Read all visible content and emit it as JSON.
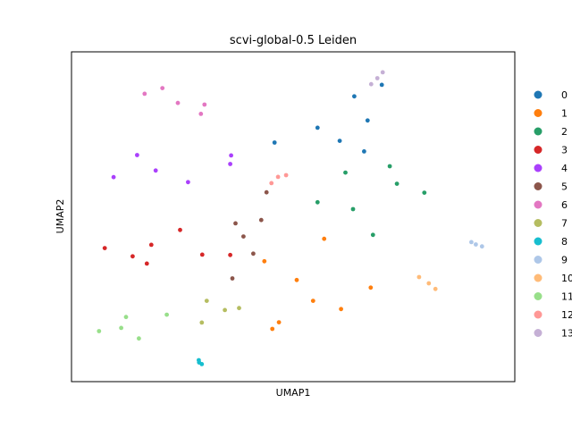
{
  "chart_data": {
    "type": "scatter",
    "title": "scvi-global-0.5 Leiden",
    "xlabel": "UMAP1",
    "ylabel": "UMAP2",
    "xticks": [],
    "yticks": [],
    "grid": false,
    "legend_position": "right",
    "xlim": [
      0,
      100
    ],
    "ylim": [
      0,
      100
    ],
    "series": [
      {
        "name": "0",
        "color": "#1f77b4",
        "points": [
          [
            55.5,
            77.0
          ],
          [
            66.8,
            79.2
          ],
          [
            70.0,
            90.0
          ],
          [
            63.8,
            86.5
          ],
          [
            45.8,
            72.5
          ],
          [
            66.0,
            69.8
          ],
          [
            60.5,
            73.0
          ]
        ]
      },
      {
        "name": "1",
        "color": "#ff7f0e",
        "points": [
          [
            54.5,
            24.5
          ],
          [
            43.5,
            36.5
          ],
          [
            67.5,
            28.5
          ],
          [
            57.0,
            43.3
          ],
          [
            50.8,
            30.8
          ],
          [
            60.8,
            22.0
          ],
          [
            45.3,
            16.0
          ],
          [
            46.8,
            18.0
          ]
        ]
      },
      {
        "name": "2",
        "color": "#279e68",
        "points": [
          [
            73.4,
            60.0
          ],
          [
            55.5,
            54.4
          ],
          [
            63.5,
            52.3
          ],
          [
            68.0,
            44.5
          ],
          [
            71.8,
            65.3
          ],
          [
            79.6,
            57.3
          ],
          [
            61.8,
            63.4
          ]
        ]
      },
      {
        "name": "3",
        "color": "#d62728",
        "points": [
          [
            18.0,
            41.5
          ],
          [
            13.8,
            38.0
          ],
          [
            24.5,
            46.0
          ],
          [
            29.5,
            38.5
          ],
          [
            7.5,
            40.5
          ],
          [
            17.0,
            35.8
          ],
          [
            35.8,
            38.4
          ]
        ]
      },
      {
        "name": "4",
        "color": "#aa40fc",
        "points": [
          [
            19.0,
            64.0
          ],
          [
            26.3,
            60.5
          ],
          [
            14.8,
            68.7
          ],
          [
            35.8,
            66.0
          ],
          [
            9.5,
            62.0
          ],
          [
            36.0,
            68.6
          ]
        ]
      },
      {
        "name": "5",
        "color": "#8c564b",
        "points": [
          [
            38.8,
            44.0
          ],
          [
            37.0,
            48.0
          ],
          [
            41.0,
            38.8
          ],
          [
            36.3,
            31.3
          ],
          [
            44.0,
            57.4
          ],
          [
            42.8,
            49.0
          ]
        ]
      },
      {
        "name": "6",
        "color": "#e377c2",
        "points": [
          [
            24.0,
            84.5
          ],
          [
            20.5,
            89.0
          ],
          [
            30.0,
            84.0
          ],
          [
            16.5,
            87.3
          ],
          [
            29.2,
            81.2
          ]
        ]
      },
      {
        "name": "7",
        "color": "#b5bd61",
        "points": [
          [
            34.6,
            21.7
          ],
          [
            30.5,
            24.5
          ],
          [
            37.8,
            22.3
          ],
          [
            29.4,
            17.9
          ]
        ]
      },
      {
        "name": "8",
        "color": "#17becf",
        "points": [
          [
            28.8,
            5.8
          ],
          [
            28.7,
            6.5
          ],
          [
            29.4,
            5.3
          ]
        ]
      },
      {
        "name": "9",
        "color": "#aec7e8",
        "points": [
          [
            91.2,
            41.6
          ],
          [
            90.2,
            42.3
          ],
          [
            92.6,
            41.0
          ]
        ]
      },
      {
        "name": "10",
        "color": "#ffbb78",
        "points": [
          [
            80.6,
            29.8
          ],
          [
            78.4,
            31.7
          ],
          [
            82.1,
            28.1
          ]
        ]
      },
      {
        "name": "11",
        "color": "#98df8a",
        "points": [
          [
            11.2,
            16.3
          ],
          [
            6.2,
            15.3
          ],
          [
            15.2,
            13.1
          ],
          [
            12.3,
            19.6
          ],
          [
            21.5,
            20.3
          ]
        ]
      },
      {
        "name": "12",
        "color": "#ff9896",
        "points": [
          [
            46.6,
            62.1
          ],
          [
            45.1,
            60.2
          ],
          [
            48.4,
            62.6
          ]
        ]
      },
      {
        "name": "13",
        "color": "#c5b0d5",
        "points": [
          [
            69.0,
            92.0
          ],
          [
            67.6,
            90.2
          ],
          [
            70.2,
            93.8
          ]
        ]
      }
    ]
  }
}
